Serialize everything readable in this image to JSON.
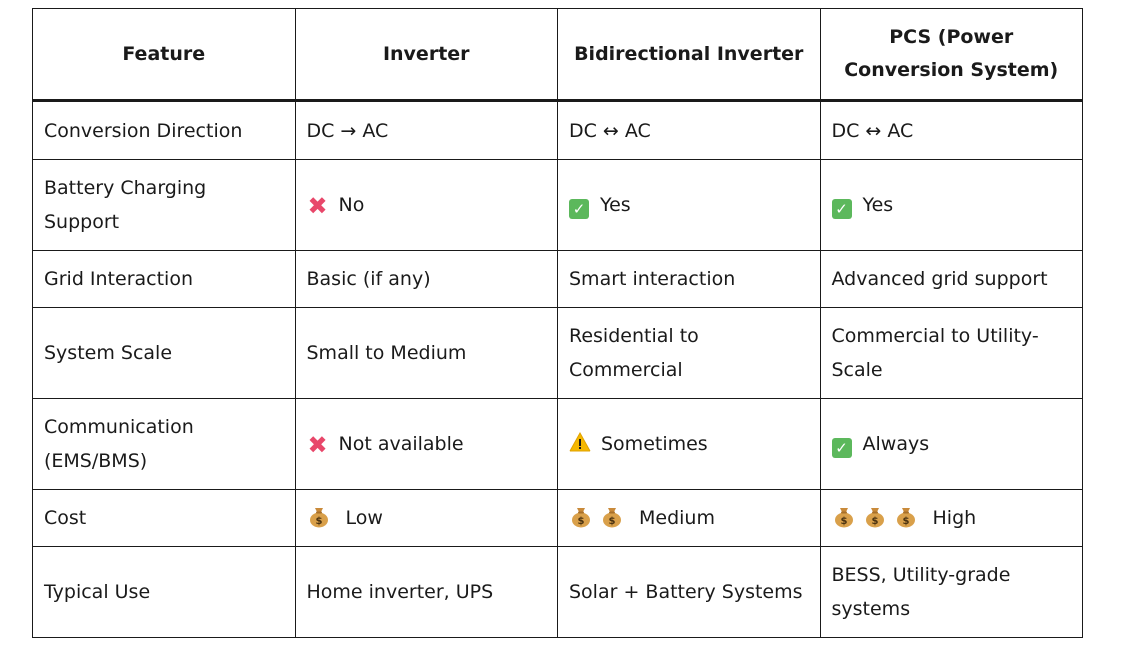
{
  "columns": [
    "Feature",
    "Inverter",
    "Bidirectional Inverter",
    "PCS (Power Conversion System)"
  ],
  "rows": [
    {
      "feature": "Conversion Direction",
      "inverter": "DC → AC",
      "bidirectional": "DC ↔ AC",
      "pcs": "DC ↔ AC"
    },
    {
      "feature": "Battery Charging Support",
      "inverter": "No",
      "inverter_icon": "cross-mark-icon",
      "bidirectional": "Yes",
      "bidirectional_icon": "check-mark-icon",
      "pcs": "Yes",
      "pcs_icon": "check-mark-icon"
    },
    {
      "feature": "Grid Interaction",
      "inverter": "Basic (if any)",
      "bidirectional": "Smart interaction",
      "pcs": "Advanced grid support"
    },
    {
      "feature": "System Scale",
      "inverter": "Small to Medium",
      "bidirectional": "Residential to Commercial",
      "pcs": "Commercial to Utility-Scale"
    },
    {
      "feature": "Communication (EMS/BMS)",
      "inverter": "Not available",
      "inverter_icon": "cross-mark-icon",
      "bidirectional": "Sometimes",
      "bidirectional_icon": "warning-icon",
      "pcs": "Always",
      "pcs_icon": "check-mark-icon"
    },
    {
      "feature": "Cost",
      "inverter": "Low",
      "inverter_bags": 1,
      "bidirectional": "Medium",
      "bidirectional_bags": 2,
      "pcs": "High",
      "pcs_bags": 3
    },
    {
      "feature": "Typical Use",
      "inverter": "Home inverter, UPS",
      "bidirectional": "Solar + Battery Systems",
      "pcs": "BESS, Utility-grade systems"
    }
  ],
  "colors": {
    "border": "#1a1a1a",
    "cross": "#e8476a",
    "check": "#5cb85c",
    "warning": "#f5b800",
    "moneybag": "#d9a04a"
  }
}
